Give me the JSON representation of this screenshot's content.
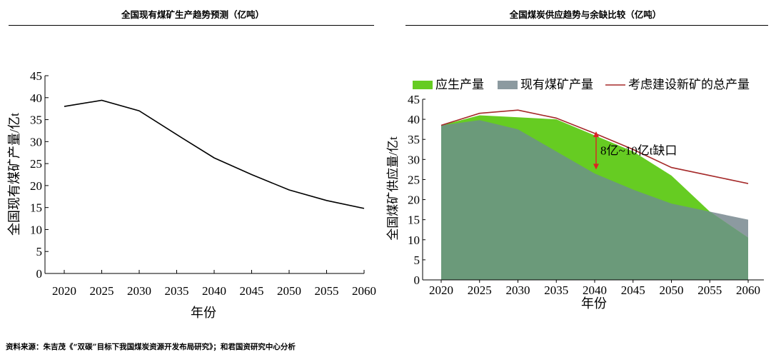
{
  "left_panel": {
    "title": "全国现有煤矿生产趋势预测（亿吨）"
  },
  "right_panel": {
    "title": "全国煤炭供应趋势与余缺比较（亿吨）"
  },
  "source": "资料来源：朱吉茂《“双碳”目标下我国煤炭资源开发布局研究》；和君国资研究中心分析",
  "chart_data": [
    {
      "type": "line",
      "title": "全国现有煤矿生产趋势预测（亿吨）",
      "xlabel": "年份",
      "ylabel": "全国现有煤矿产量/亿t",
      "x": [
        2020,
        2025,
        2030,
        2035,
        2040,
        2045,
        2050,
        2055,
        2060
      ],
      "series": [
        {
          "name": "现有煤矿产量",
          "values": [
            38,
            39.4,
            37,
            31.6,
            26.3,
            22.5,
            19,
            16.6,
            14.8
          ],
          "color": "#000000"
        }
      ],
      "ylim": [
        0,
        45
      ],
      "yticks": [
        0,
        5,
        10,
        15,
        20,
        25,
        30,
        35,
        40,
        45
      ],
      "xticks": [
        "2020",
        "2025",
        "2030",
        "2035",
        "2040",
        "2045",
        "2050",
        "2055",
        "2060"
      ]
    },
    {
      "type": "area",
      "title": "全国煤炭供应趋势与余缺比较（亿吨）",
      "xlabel": "年份",
      "ylabel": "全国煤矿供应量/亿t",
      "x": [
        2020,
        2025,
        2030,
        2035,
        2040,
        2045,
        2050,
        2055,
        2060
      ],
      "series": [
        {
          "name": "应生产量",
          "kind": "area",
          "color": "#66cc22",
          "values": [
            38.5,
            41,
            40.5,
            40,
            36,
            32,
            26,
            17,
            10.5
          ]
        },
        {
          "name": "现有煤矿产量",
          "kind": "area",
          "color": "#8c9aa0",
          "values": [
            38.5,
            39.8,
            37.5,
            32,
            26.5,
            22.5,
            19,
            17,
            15
          ]
        },
        {
          "name": "考虑建设新矿的总产量",
          "kind": "line",
          "color": "#a52a2a",
          "values": [
            38.5,
            41.5,
            42.3,
            40.3,
            36.5,
            32.5,
            28,
            26,
            24
          ]
        }
      ],
      "annotation": {
        "text": "8亿~10亿t缺口",
        "x": 2040,
        "from": 27.5,
        "to": 37
      },
      "ylim": [
        0,
        45
      ],
      "yticks": [
        0,
        5,
        10,
        15,
        20,
        25,
        30,
        35,
        40,
        45
      ],
      "xticks": [
        "2020",
        "2025",
        "2030",
        "2035",
        "2040",
        "2045",
        "2050",
        "2055",
        "2060"
      ]
    }
  ]
}
